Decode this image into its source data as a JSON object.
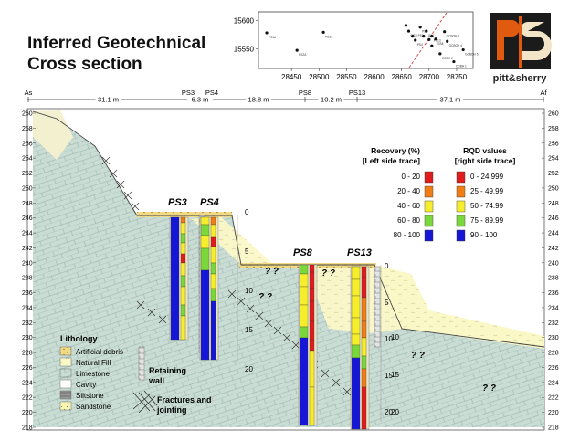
{
  "title_line1": "Inferred Geotechnical",
  "title_line2": "Cross section",
  "logo": {
    "text": "pitt&sherry",
    "monogram": "PS"
  },
  "colors": {
    "recovery_0_20": "#e11b1b",
    "recovery_20_40": "#f07d15",
    "recovery_40_60": "#f6ee2c",
    "recovery_60_80": "#7ad83b",
    "recovery_80_100": "#1616d6",
    "limestone": "#c9ddd5",
    "natural_fill": "#fbf8c8",
    "artificial_debris": "#f1da86",
    "sky_fill": "#f3f0cf",
    "logo_bg": "#1b1b1b",
    "logo_orange": "#e05a10",
    "logo_cream": "#f3e6c8"
  },
  "location_plot": {
    "y_ticks": [
      "15600",
      "15550"
    ],
    "x_ticks": [
      "28450",
      "28500",
      "28550",
      "28600",
      "28650",
      "28700",
      "28750"
    ],
    "points": [
      {
        "x": 28405,
        "y": 15578,
        "label": "PS1A"
      },
      {
        "x": 28460,
        "y": 15547,
        "label": "PS2A"
      },
      {
        "x": 28508,
        "y": 15579,
        "label": "PS3A"
      },
      {
        "x": 28658,
        "y": 15591,
        "label": ""
      },
      {
        "x": 28663,
        "y": 15581,
        "label": "GS3/ PS3"
      },
      {
        "x": 28670,
        "y": 15572,
        "label": ""
      },
      {
        "x": 28675,
        "y": 15565,
        "label": "PS4"
      },
      {
        "x": 28684,
        "y": 15588,
        "label": "PS8"
      },
      {
        "x": 28690,
        "y": 15572,
        "label": ""
      },
      {
        "x": 28695,
        "y": 15581,
        "label": "GS1"
      },
      {
        "x": 28700,
        "y": 15566,
        "label": ""
      },
      {
        "x": 28705,
        "y": 15572,
        "label": "PS13"
      },
      {
        "x": 28705,
        "y": 15555,
        "label": ""
      },
      {
        "x": 28712,
        "y": 15567,
        "label": "GS8"
      },
      {
        "x": 28720,
        "y": 15541,
        "label": "COBH 2"
      },
      {
        "x": 28728,
        "y": 15580,
        "label": "GCBOH 3"
      },
      {
        "x": 28733,
        "y": 15563,
        "label": "GCBOH 4"
      },
      {
        "x": 28745,
        "y": 15527,
        "label": "COBH 1"
      },
      {
        "x": 28762,
        "y": 15548,
        "label": "GCBOH 5"
      }
    ]
  },
  "section_line": {
    "ends": {
      "start": "As",
      "end": "Af"
    },
    "markers": [
      "PS3",
      "PS4",
      "PS8",
      "PS13"
    ],
    "spans": [
      "31.1 m",
      "6.3 m",
      "18.8 m",
      "10.2 m",
      "37.1 m"
    ]
  },
  "elevation_scale": [
    "260",
    "258",
    "256",
    "254",
    "252",
    "250",
    "248",
    "246",
    "244",
    "242",
    "240",
    "238",
    "236",
    "234",
    "232",
    "230",
    "228",
    "226",
    "224",
    "222",
    "220",
    "218"
  ],
  "borehole_labels": [
    "PS3",
    "PS4",
    "PS8",
    "PS13"
  ],
  "depth_labels": {
    "ps3_ps4": [
      "0",
      "5",
      "10",
      "15",
      "20"
    ],
    "ps8_ps13": [
      "0",
      "5",
      "10",
      "15",
      "20"
    ],
    "right": [
      "10",
      "15",
      "20"
    ]
  },
  "unknown_mark": "? ?",
  "legend": {
    "recovery_header": "Recovery (%)",
    "recovery_sub": "[Left side trace]",
    "rqd_header": "RQD values",
    "rqd_sub": "[right side trace]",
    "recovery_rows": [
      "0 - 20",
      "20 - 40",
      "40 - 60",
      "60 - 80",
      "80 - 100"
    ],
    "rqd_rows": [
      "0 - 24.999",
      "25 - 49.99",
      "50 - 74.99",
      "75 - 89.99",
      "90 - 100"
    ]
  },
  "lithology": {
    "heading": "Lithology",
    "items": [
      "Artificial debris",
      "Natural Fill",
      "Limestone",
      "Cavity",
      "Siltstone",
      "Sandstone"
    ],
    "retaining_wall_line1": "Retaining",
    "retaining_wall_line2": "wall",
    "fractures_line1": "Fractures and",
    "fractures_line2": "jointing"
  }
}
